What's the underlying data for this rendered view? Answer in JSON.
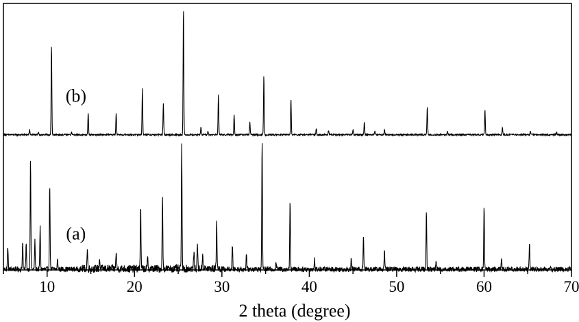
{
  "chart_data": {
    "type": "line",
    "title": "",
    "xlabel": "2 theta (degree)",
    "ylabel": "",
    "xlim": [
      5,
      70
    ],
    "x_ticks": [
      10,
      20,
      30,
      40,
      50,
      60,
      70
    ],
    "grid": false,
    "legend": "none",
    "baseline_noise": {
      "a": 0.04,
      "b": 0.012
    },
    "series": [
      {
        "name": "(a)",
        "color": "#000000",
        "baseline": 0.0,
        "peaks": [
          [
            5.5,
            0.18
          ],
          [
            7.2,
            0.22
          ],
          [
            7.6,
            0.2
          ],
          [
            8.1,
            0.86
          ],
          [
            8.6,
            0.22
          ],
          [
            9.2,
            0.33
          ],
          [
            10.3,
            0.67
          ],
          [
            11.2,
            0.08
          ],
          [
            14.6,
            0.15
          ],
          [
            16.0,
            0.08
          ],
          [
            17.9,
            0.14
          ],
          [
            20.7,
            0.5
          ],
          [
            21.5,
            0.08
          ],
          [
            23.2,
            0.56
          ],
          [
            25.4,
            0.98
          ],
          [
            26.8,
            0.14
          ],
          [
            27.2,
            0.2
          ],
          [
            27.8,
            0.12
          ],
          [
            29.4,
            0.39
          ],
          [
            31.2,
            0.18
          ],
          [
            32.8,
            0.12
          ],
          [
            34.6,
            1.0
          ],
          [
            36.2,
            0.06
          ],
          [
            37.8,
            0.55
          ],
          [
            40.6,
            0.08
          ],
          [
            44.8,
            0.08
          ],
          [
            46.2,
            0.26
          ],
          [
            48.6,
            0.14
          ],
          [
            53.4,
            0.45
          ],
          [
            54.5,
            0.06
          ],
          [
            60.0,
            0.5
          ],
          [
            62.0,
            0.08
          ],
          [
            65.2,
            0.2
          ]
        ]
      },
      {
        "name": "(b)",
        "color": "#000000",
        "baseline": 1.06,
        "peaks": [
          [
            8.0,
            0.04
          ],
          [
            9.0,
            0.02
          ],
          [
            10.5,
            0.71
          ],
          [
            12.8,
            0.02
          ],
          [
            14.7,
            0.17
          ],
          [
            17.9,
            0.17
          ],
          [
            20.9,
            0.36
          ],
          [
            23.3,
            0.24
          ],
          [
            25.6,
            1.0
          ],
          [
            27.6,
            0.06
          ],
          [
            28.4,
            0.03
          ],
          [
            29.6,
            0.32
          ],
          [
            31.4,
            0.16
          ],
          [
            33.2,
            0.1
          ],
          [
            34.8,
            0.47
          ],
          [
            37.9,
            0.28
          ],
          [
            40.8,
            0.05
          ],
          [
            42.2,
            0.03
          ],
          [
            45.0,
            0.04
          ],
          [
            46.3,
            0.1
          ],
          [
            47.5,
            0.03
          ],
          [
            48.6,
            0.04
          ],
          [
            53.5,
            0.22
          ],
          [
            55.8,
            0.03
          ],
          [
            60.1,
            0.2
          ],
          [
            62.1,
            0.06
          ],
          [
            65.3,
            0.03
          ],
          [
            68.3,
            0.02
          ]
        ]
      }
    ]
  }
}
